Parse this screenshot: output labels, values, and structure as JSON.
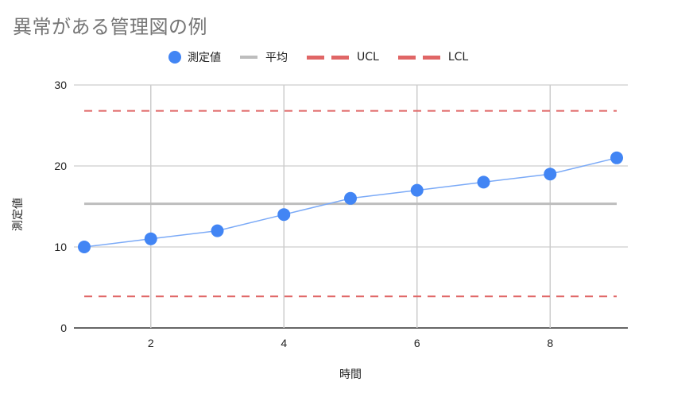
{
  "title": "異常がある管理図の例",
  "legend": [
    {
      "label": "測定値",
      "type": "dot",
      "color": "#4285f4"
    },
    {
      "label": "平均",
      "type": "line",
      "color": "#bdbdbd"
    },
    {
      "label": "UCL",
      "type": "dash",
      "color": "#e06666"
    },
    {
      "label": "LCL",
      "type": "dash",
      "color": "#e06666"
    }
  ],
  "axes": {
    "x_title": "時間",
    "y_title": "測定値",
    "x_ticks": [
      "2",
      "4",
      "6",
      "8"
    ],
    "y_ticks": [
      "0",
      "10",
      "20",
      "30"
    ]
  },
  "chart_data": {
    "type": "line",
    "title": "異常がある管理図の例",
    "xlabel": "時間",
    "ylabel": "測定値",
    "x": [
      1,
      2,
      3,
      4,
      5,
      6,
      7,
      8,
      9
    ],
    "series": [
      {
        "name": "測定値",
        "values": [
          10,
          11,
          12,
          14,
          16,
          17,
          18,
          19,
          21
        ],
        "color": "#4285f4",
        "style": "line+markers"
      },
      {
        "name": "平均",
        "values": [
          15.33,
          15.33,
          15.33,
          15.33,
          15.33,
          15.33,
          15.33,
          15.33,
          15.33
        ],
        "color": "#bdbdbd",
        "style": "solid"
      },
      {
        "name": "UCL",
        "values": [
          26.8,
          26.8,
          26.8,
          26.8,
          26.8,
          26.8,
          26.8,
          26.8,
          26.8
        ],
        "color": "#e06666",
        "style": "dashed"
      },
      {
        "name": "LCL",
        "values": [
          3.9,
          3.9,
          3.9,
          3.9,
          3.9,
          3.9,
          3.9,
          3.9,
          3.9
        ],
        "color": "#e06666",
        "style": "dashed"
      }
    ],
    "xlim": [
      0.85,
      9.15
    ],
    "ylim": [
      0,
      30
    ],
    "x_ticks": [
      2,
      4,
      6,
      8
    ],
    "y_ticks": [
      0,
      10,
      20,
      30
    ],
    "grid": true,
    "legend_position": "top"
  }
}
